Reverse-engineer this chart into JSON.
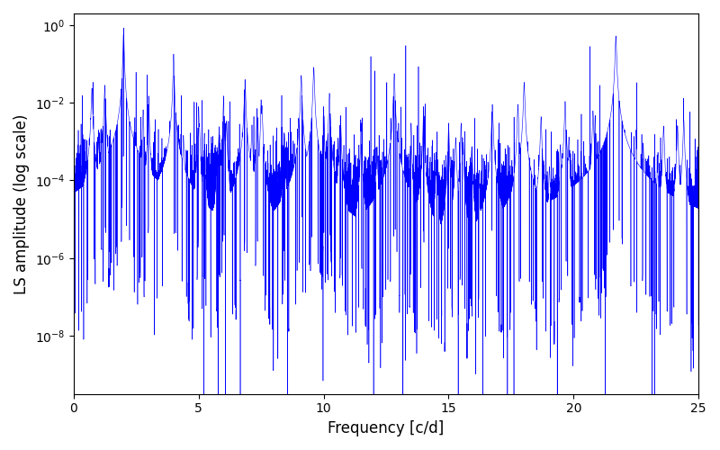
{
  "title": "",
  "xlabel": "Frequency [c/d]",
  "ylabel": "LS amplitude (log scale)",
  "line_color": "blue",
  "xlim": [
    0,
    25
  ],
  "ylim_log": [
    -9.5,
    0.3
  ],
  "freq_max": 25.0,
  "n_points": 15000,
  "seed": 42,
  "background_color": "#ffffff",
  "major_peaks": [
    {
      "freq": 1.0,
      "amp": 0.002
    },
    {
      "freq": 2.0,
      "amp": 0.85
    },
    {
      "freq": 3.0,
      "amp": 0.015
    },
    {
      "freq": 4.0,
      "amp": 0.18
    },
    {
      "freq": 5.0,
      "amp": 0.008
    },
    {
      "freq": 6.0,
      "amp": 0.015
    },
    {
      "freq": 7.5,
      "amp": 0.012
    },
    {
      "freq": 9.0,
      "amp": 0.004
    },
    {
      "freq": 10.0,
      "amp": 0.008
    },
    {
      "freq": 11.5,
      "amp": 0.003
    },
    {
      "freq": 13.0,
      "amp": 0.003
    },
    {
      "freq": 13.5,
      "amp": 0.003
    },
    {
      "freq": 14.0,
      "amp": 0.008
    },
    {
      "freq": 15.0,
      "amp": 0.003
    },
    {
      "freq": 15.5,
      "amp": 0.003
    },
    {
      "freq": 18.0,
      "amp": 0.003
    },
    {
      "freq": 20.0,
      "amp": 0.0001
    },
    {
      "freq": 22.5,
      "amp": 0.002
    },
    {
      "freq": 24.0,
      "amp": 0.0001
    }
  ],
  "figsize": [
    8.0,
    5.0
  ],
  "dpi": 100
}
